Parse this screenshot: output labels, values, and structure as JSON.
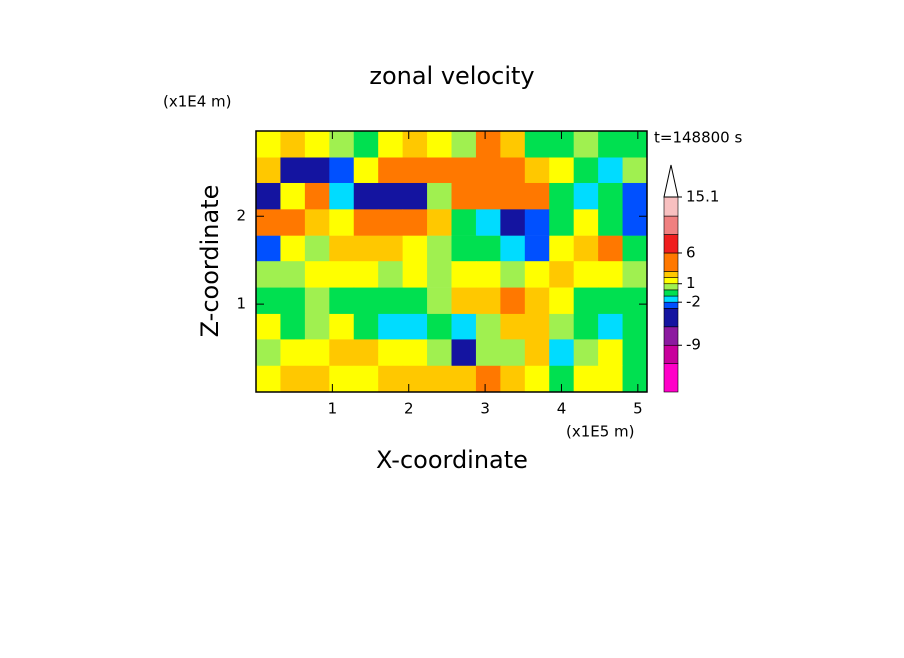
{
  "chart_data": {
    "type": "contour",
    "title": "zonal velocity",
    "xlabel": "X-coordinate",
    "ylabel": "Z-coordinate",
    "xunit": "(x1E5 m)",
    "yunit": "(x1E4 m)",
    "time_label": "t=148800 s",
    "xlim": [
      0,
      5.12
    ],
    "ylim": [
      0,
      2.97
    ],
    "xticks": [
      1,
      2,
      3,
      4,
      5
    ],
    "yticks": [
      1,
      2
    ],
    "x": [
      0.16,
      0.48,
      0.8,
      1.12,
      1.44,
      1.76,
      2.08,
      2.4,
      2.72,
      3.04,
      3.36,
      3.68,
      4.0,
      4.32,
      4.64,
      4.96
    ],
    "y": [
      2.82,
      2.52,
      2.23,
      1.93,
      1.63,
      1.34,
      1.04,
      0.74,
      0.45,
      0.15
    ],
    "z": [
      [
        1,
        2,
        1,
        0.5,
        -1,
        1,
        2,
        1,
        0.5,
        3,
        2,
        -1,
        -1,
        0.5,
        -1,
        -1
      ],
      [
        2,
        -4,
        -5,
        -3,
        1,
        3,
        3,
        4,
        3,
        4,
        4,
        2,
        1,
        -1,
        -2,
        0.5
      ],
      [
        -4,
        1,
        3,
        -2,
        -5,
        -6,
        -4,
        0.5,
        3,
        4,
        4,
        3,
        -1,
        -2,
        -1,
        -3
      ],
      [
        4,
        3,
        2,
        1,
        3,
        4,
        4,
        2,
        -1,
        -2,
        -5,
        -3,
        -1,
        1,
        -1,
        -3
      ],
      [
        -3,
        1,
        0.5,
        2,
        2,
        2,
        1,
        0.5,
        -1,
        -1,
        -2,
        -3,
        1,
        2,
        3,
        -1
      ],
      [
        0.5,
        0,
        1,
        1,
        1,
        0.5,
        1,
        0.5,
        1,
        1.5,
        0,
        1,
        2,
        1,
        1,
        0.5
      ],
      [
        -1,
        -1,
        0.5,
        -1,
        -1,
        -1,
        -1,
        0.5,
        2,
        2,
        3,
        2,
        1,
        -1,
        -1,
        -1
      ],
      [
        1,
        -1,
        0.5,
        1,
        -1,
        -2,
        -2,
        -1,
        -2,
        0.5,
        2,
        2,
        0.5,
        -1,
        -2,
        -1
      ],
      [
        0.5,
        1,
        1,
        2,
        2,
        1,
        1,
        0.5,
        -4,
        0,
        0.5,
        2,
        -2,
        0.5,
        1,
        -1
      ],
      [
        1,
        2,
        2,
        1.5,
        1.5,
        2,
        2,
        2,
        2.5,
        3,
        2,
        1.5,
        -1,
        1,
        1,
        -1
      ]
    ],
    "levels": [
      -16.6,
      -12,
      -9,
      -6,
      -3,
      -2,
      -1,
      0,
      1,
      2,
      3,
      6,
      9,
      12,
      15.1
    ],
    "colors": [
      "#ff00c8",
      "#c8009c",
      "#8c1aa0",
      "#1414a0",
      "#0050ff",
      "#00dcff",
      "#00e050",
      "#a0f050",
      "#ffff00",
      "#ffc800",
      "#ff7800",
      "#f01e1e",
      "#f08080",
      "#f8c0c0"
    ],
    "extend_color": "#ffffff",
    "colorbar_ticks": [
      15.1,
      6,
      1,
      -2,
      -9
    ]
  }
}
